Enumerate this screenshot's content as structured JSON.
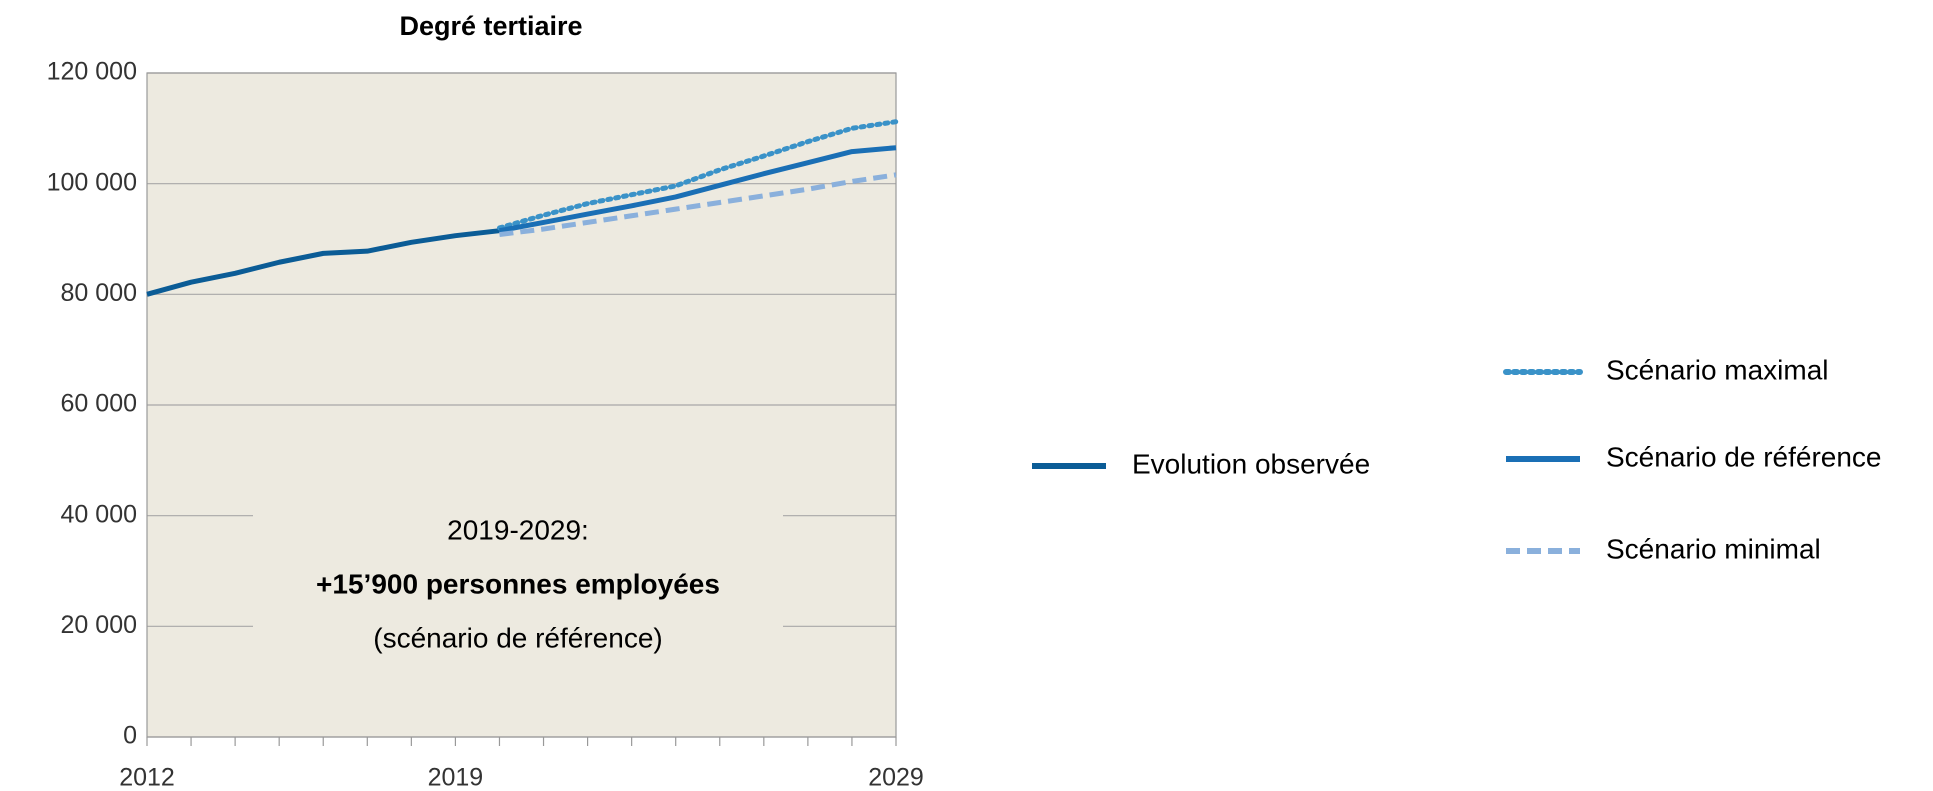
{
  "chart_data": {
    "type": "line",
    "title": "Degré tertiaire",
    "x": [
      2012,
      2013,
      2014,
      2015,
      2016,
      2017,
      2018,
      2019,
      2020,
      2021,
      2022,
      2023,
      2024,
      2025,
      2026,
      2027,
      2028,
      2029
    ],
    "xlim": [
      2012,
      2029
    ],
    "xticks": [
      2012,
      2019,
      2029
    ],
    "ylim": [
      0,
      120000
    ],
    "yticks": [
      {
        "value": 0,
        "label": "0"
      },
      {
        "value": 20000,
        "label": "20 000"
      },
      {
        "value": 40000,
        "label": "40 000"
      },
      {
        "value": 60000,
        "label": "60 000"
      },
      {
        "value": 80000,
        "label": "80 000"
      },
      {
        "value": 100000,
        "label": "100 000"
      },
      {
        "value": 120000,
        "label": "120 000"
      }
    ],
    "grid": true,
    "series": [
      {
        "name": "Evolution observée",
        "color": "#0b5c96",
        "style": "solid",
        "values": [
          80000,
          82200,
          83800,
          85800,
          87400,
          87800,
          89400,
          90600,
          91500,
          null,
          null,
          null,
          null,
          null,
          null,
          null,
          null,
          null
        ]
      },
      {
        "name": "Scénario maximal",
        "color": "#3a92c8",
        "style": "dotted",
        "values": [
          null,
          null,
          null,
          null,
          null,
          null,
          null,
          null,
          92000,
          94300,
          96400,
          98000,
          99600,
          102500,
          105000,
          107600,
          110000,
          111200
        ]
      },
      {
        "name": "Scénario de référence",
        "color": "#1a6fb5",
        "style": "solid",
        "values": [
          null,
          null,
          null,
          null,
          null,
          null,
          null,
          null,
          91500,
          93000,
          94500,
          96000,
          97600,
          99700,
          101800,
          103800,
          105800,
          106500
        ]
      },
      {
        "name": "Scénario minimal",
        "color": "#8ab0dc",
        "style": "dashed",
        "values": [
          null,
          null,
          null,
          null,
          null,
          null,
          null,
          null,
          90800,
          91800,
          93000,
          94200,
          95400,
          96600,
          97800,
          99000,
          100400,
          101600
        ]
      }
    ],
    "annotations": [
      "2019-2029:",
      "+15’900 personnes employées",
      "(scénario de référence)"
    ]
  }
}
